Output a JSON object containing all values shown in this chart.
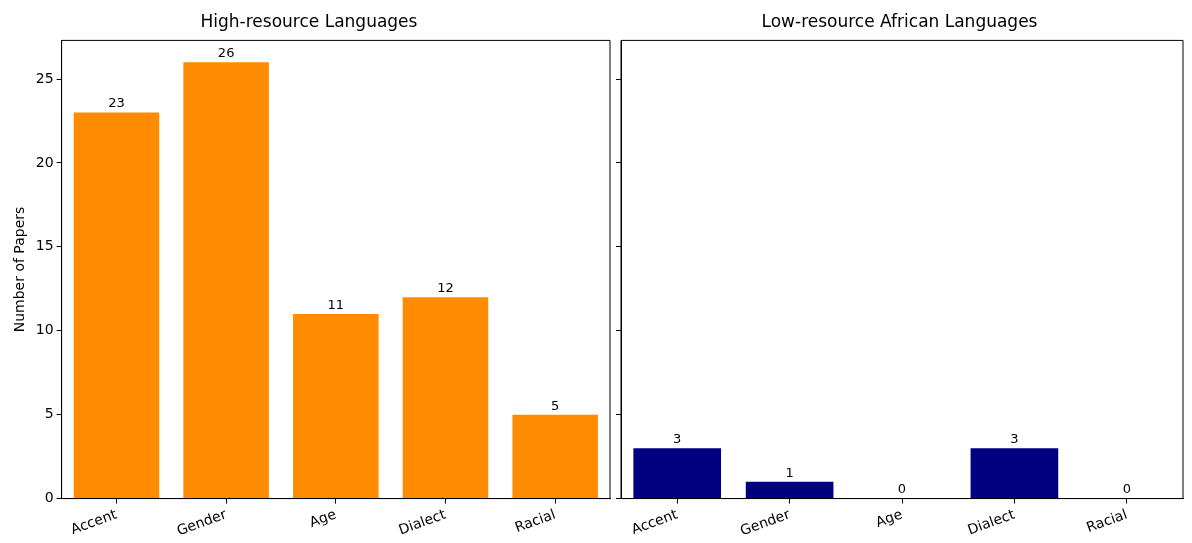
{
  "chart_data": [
    {
      "type": "bar",
      "title": "High-resource Languages",
      "ylabel": "Number of Papers",
      "categories": [
        "Accent",
        "Gender",
        "Age",
        "Dialect",
        "Racial"
      ],
      "values": [
        23,
        26,
        11,
        12,
        5
      ],
      "color": "#ff8c00",
      "ylim": [
        0,
        27.3
      ],
      "yticks": [
        0,
        5,
        10,
        15,
        20,
        25
      ],
      "data_labels": true,
      "grid": false
    },
    {
      "type": "bar",
      "title": "Low-resource African Languages",
      "categories": [
        "Accent",
        "Gender",
        "Age",
        "Dialect",
        "Racial"
      ],
      "values": [
        3,
        1,
        0,
        3,
        0
      ],
      "color": "#000080",
      "ylim": [
        0,
        27.3
      ],
      "yticks": [
        0,
        5,
        10,
        15,
        20,
        25
      ],
      "data_labels": true,
      "grid": false,
      "tick_labels": "x"
    }
  ]
}
